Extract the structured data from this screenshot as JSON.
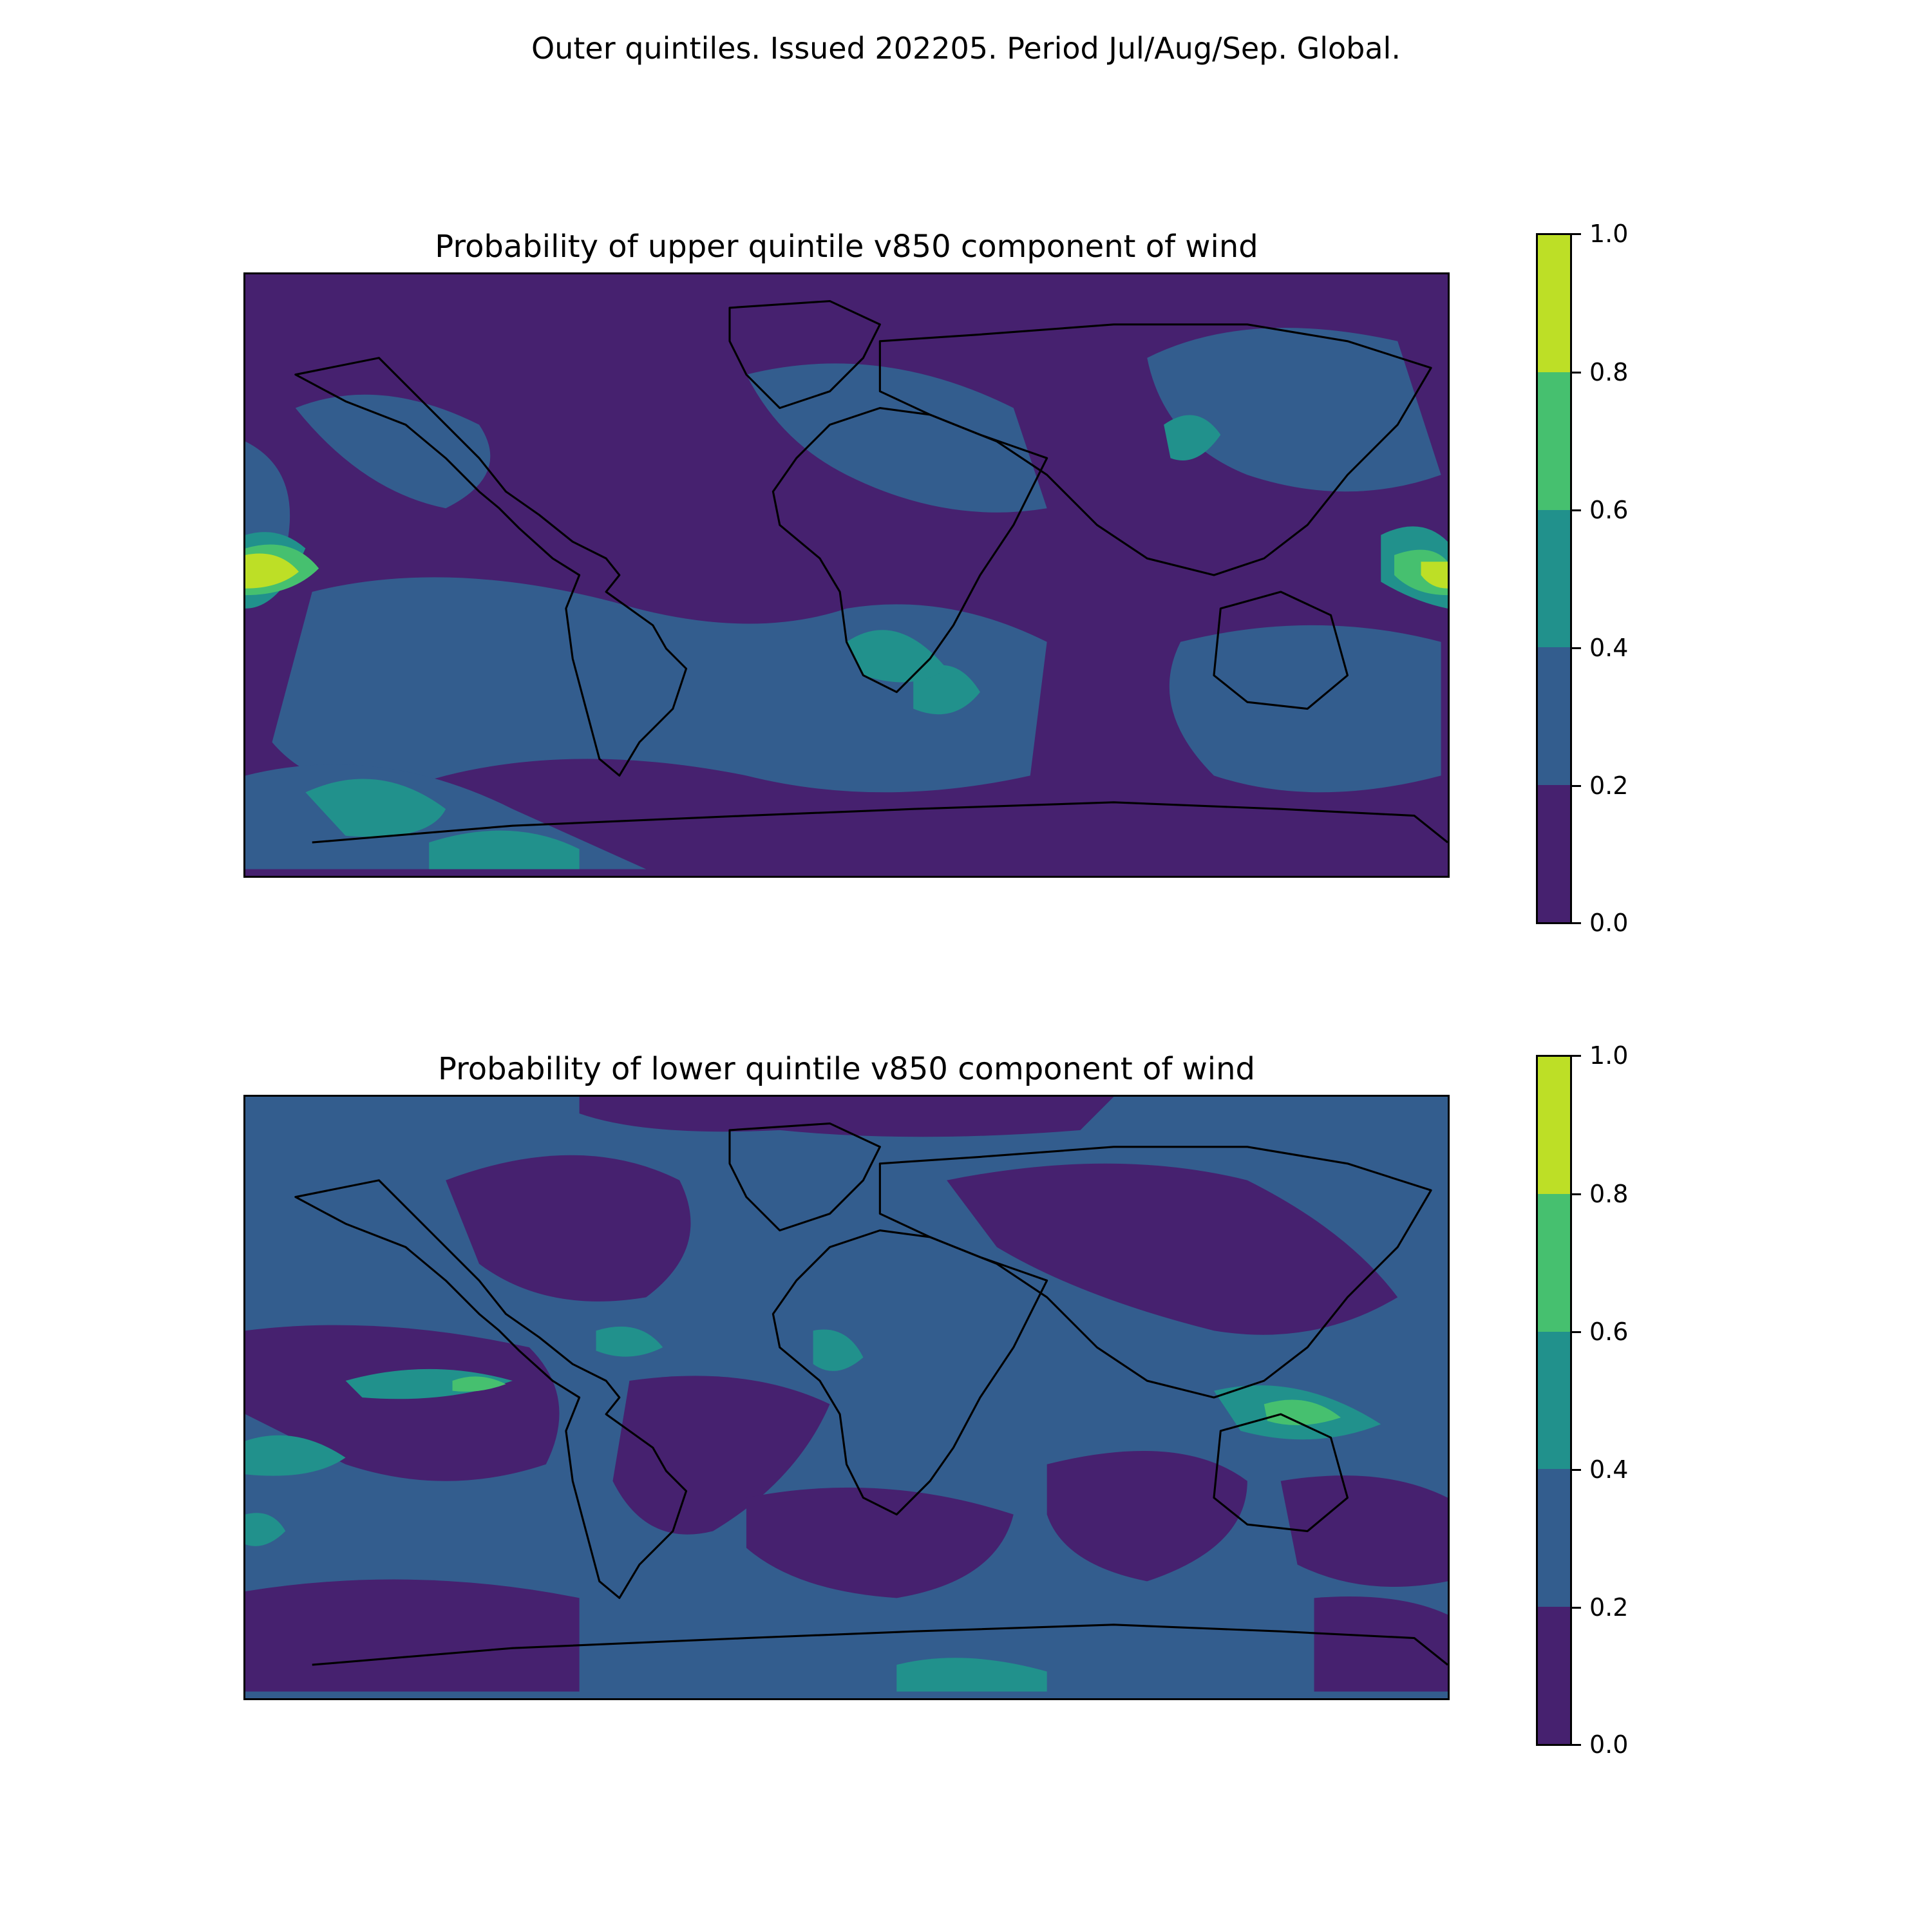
{
  "suptitle": "Outer quintiles. Issued 202205. Period Jul/Aug/Sep. Global.",
  "colorbar": {
    "levels": [
      0.0,
      0.2,
      0.4,
      0.6,
      0.8,
      1.0
    ],
    "tick_labels": [
      "0.0",
      "0.2",
      "0.4",
      "0.6",
      "0.8",
      "1.0"
    ],
    "colors": [
      "#46216f",
      "#335d8e",
      "#21918c",
      "#46c06f",
      "#bddf26"
    ]
  },
  "panels": [
    {
      "title": "Probability of upper quintile v850 component of wind",
      "dominant_level": "0.0-0.2",
      "highlights": [
        "central Pacific near equator 0.8-1.0",
        "western Pacific near equator 0.6-0.8",
        "South Atlantic 0.4-0.6",
        "Southern Ocean 0.4-0.6"
      ]
    },
    {
      "title": "Probability of lower quintile v850 component of wind",
      "dominant_level": "0.2-0.4",
      "highlights": [
        "Maritime Continent 0.4-0.6",
        "eastern Pacific ITCZ 0.4-0.8",
        "southern Pacific 0.4-0.6",
        "Antarctic coast 0.4-0.6"
      ]
    }
  ]
}
